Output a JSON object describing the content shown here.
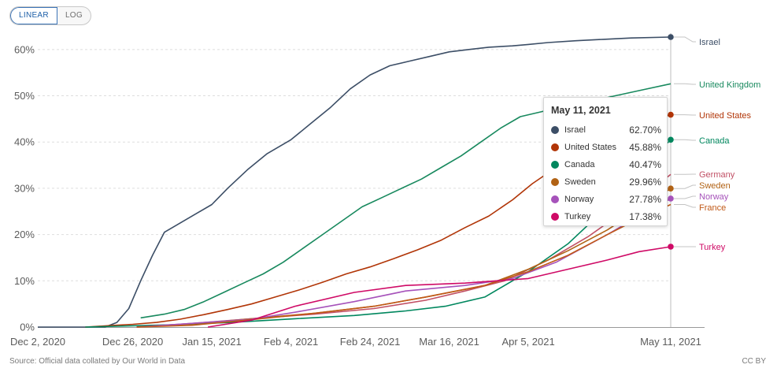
{
  "controls": {
    "linear_label": "LINEAR",
    "log_label": "LOG"
  },
  "footer": {
    "source": "Source: Official data collated by Our World in Data",
    "license": "CC BY"
  },
  "colors": {
    "Israel": "#3c4e66",
    "United Kingdom": "#18895e",
    "United States": "#b13507",
    "Canada": "#00875e",
    "Germany": "#c15065",
    "Sweden": "#b16214",
    "Norway": "#a652ba",
    "France": "#c05917",
    "Turkey": "#cf0a66",
    "grid": "#dddddd"
  },
  "tooltip": {
    "date": "May 11, 2021",
    "rows": [
      {
        "name": "Israel",
        "value": "62.70%",
        "color": "#3c4e66"
      },
      {
        "name": "United States",
        "value": "45.88%",
        "color": "#b13507"
      },
      {
        "name": "Canada",
        "value": "40.47%",
        "color": "#00875e"
      },
      {
        "name": "Sweden",
        "value": "29.96%",
        "color": "#b16214"
      },
      {
        "name": "Norway",
        "value": "27.78%",
        "color": "#a652ba"
      },
      {
        "name": "Turkey",
        "value": "17.38%",
        "color": "#cf0a66"
      }
    ]
  },
  "chart_data": {
    "type": "line",
    "title": "",
    "xlabel": "",
    "ylabel": "",
    "y_unit": "%",
    "ylim": [
      0,
      62.7
    ],
    "xlim": [
      "2020-12-02",
      "2021-05-11"
    ],
    "grid": "horizontal dashed",
    "x_tick_labels": [
      "Dec 2, 2020",
      "Dec 26, 2020",
      "Jan 15, 2021",
      "Feb 4, 2021",
      "Feb 24, 2021",
      "Mar 16, 2021",
      "Apr 5, 2021",
      "May 11, 2021"
    ],
    "x_tick_dates": [
      "2020-12-02",
      "2020-12-26",
      "2021-01-15",
      "2021-02-04",
      "2021-02-24",
      "2021-03-16",
      "2021-04-05",
      "2021-05-11"
    ],
    "y_tick_labels": [
      "0%",
      "10%",
      "20%",
      "30%",
      "40%",
      "50%",
      "60%"
    ],
    "y_ticks": [
      0,
      10,
      20,
      30,
      40,
      50,
      60
    ],
    "series": [
      {
        "name": "Israel",
        "endpoint_marker": true,
        "x": [
          "2020-12-02",
          "2020-12-19",
          "2020-12-22",
          "2020-12-25",
          "2020-12-28",
          "2020-12-31",
          "2021-01-03",
          "2021-01-07",
          "2021-01-11",
          "2021-01-15",
          "2021-01-19",
          "2021-01-24",
          "2021-01-29",
          "2021-02-04",
          "2021-02-09",
          "2021-02-14",
          "2021-02-19",
          "2021-02-24",
          "2021-03-01",
          "2021-03-06",
          "2021-03-11",
          "2021-03-16",
          "2021-03-21",
          "2021-03-26",
          "2021-04-01",
          "2021-04-05",
          "2021-04-10",
          "2021-04-17",
          "2021-04-24",
          "2021-05-01",
          "2021-05-11"
        ],
        "y": [
          0,
          0,
          1.0,
          4.0,
          10.0,
          15.5,
          20.5,
          22.5,
          24.5,
          26.5,
          30.0,
          34.0,
          37.5,
          40.5,
          44.0,
          47.5,
          51.5,
          54.5,
          56.5,
          57.5,
          58.5,
          59.5,
          60.0,
          60.5,
          60.8,
          61.1,
          61.5,
          61.9,
          62.2,
          62.5,
          62.7
        ]
      },
      {
        "name": "United Kingdom",
        "endpoint_marker": false,
        "x": [
          "2020-12-28",
          "2021-01-03",
          "2021-01-08",
          "2021-01-13",
          "2021-01-18",
          "2021-01-23",
          "2021-01-28",
          "2021-02-02",
          "2021-02-07",
          "2021-02-12",
          "2021-02-17",
          "2021-02-22",
          "2021-02-27",
          "2021-03-04",
          "2021-03-09",
          "2021-03-14",
          "2021-03-19",
          "2021-03-24",
          "2021-03-29",
          "2021-04-03",
          "2021-04-08",
          "2021-04-13",
          "2021-04-20",
          "2021-04-27",
          "2021-05-04",
          "2021-05-11"
        ],
        "y": [
          2.0,
          2.8,
          3.8,
          5.5,
          7.5,
          9.5,
          11.5,
          14.0,
          17.0,
          20.0,
          23.0,
          26.0,
          28.0,
          30.0,
          32.0,
          34.5,
          37.0,
          40.0,
          43.0,
          45.5,
          46.5,
          47.5,
          48.7,
          50.0,
          51.3,
          52.6
        ]
      },
      {
        "name": "United States",
        "endpoint_marker": true,
        "x": [
          "2020-12-14",
          "2020-12-20",
          "2020-12-26",
          "2021-01-01",
          "2021-01-07",
          "2021-01-13",
          "2021-01-19",
          "2021-01-25",
          "2021-01-31",
          "2021-02-06",
          "2021-02-12",
          "2021-02-18",
          "2021-02-24",
          "2021-03-02",
          "2021-03-08",
          "2021-03-14",
          "2021-03-20",
          "2021-03-26",
          "2021-04-01",
          "2021-04-06",
          "2021-04-12",
          "2021-04-20",
          "2021-04-27",
          "2021-05-04",
          "2021-05-11"
        ],
        "y": [
          0,
          0.3,
          0.6,
          1.0,
          1.7,
          2.7,
          3.8,
          5.0,
          6.5,
          8.0,
          9.7,
          11.5,
          13.0,
          14.8,
          16.7,
          18.8,
          21.5,
          24.0,
          27.5,
          31.0,
          34.5,
          38.5,
          41.5,
          44.0,
          45.9
        ]
      },
      {
        "name": "Canada",
        "endpoint_marker": true,
        "x": [
          "2020-12-14",
          "2021-01-05",
          "2021-01-20",
          "2021-02-05",
          "2021-02-20",
          "2021-03-05",
          "2021-03-15",
          "2021-03-25",
          "2021-04-05",
          "2021-04-15",
          "2021-04-25",
          "2021-05-03",
          "2021-05-11"
        ],
        "y": [
          0,
          0.5,
          1.0,
          1.8,
          2.5,
          3.5,
          4.5,
          6.5,
          12.0,
          18.0,
          26.0,
          34.0,
          40.5
        ]
      },
      {
        "name": "Germany",
        "endpoint_marker": false,
        "x": [
          "2020-12-27",
          "2021-01-10",
          "2021-01-25",
          "2021-02-10",
          "2021-02-25",
          "2021-03-10",
          "2021-03-20",
          "2021-03-30",
          "2021-04-10",
          "2021-04-20",
          "2021-04-30",
          "2021-05-11"
        ],
        "y": [
          0,
          0.8,
          1.8,
          2.8,
          4.0,
          5.8,
          7.8,
          10.0,
          14.5,
          19.5,
          25.5,
          33.0
        ]
      },
      {
        "name": "Sweden",
        "endpoint_marker": true,
        "x": [
          "2020-12-27",
          "2021-01-10",
          "2021-01-25",
          "2021-02-10",
          "2021-02-25",
          "2021-03-10",
          "2021-03-25",
          "2021-04-05",
          "2021-04-15",
          "2021-04-25",
          "2021-05-03",
          "2021-05-11"
        ],
        "y": [
          0,
          0.7,
          1.8,
          3.0,
          4.5,
          6.5,
          9.0,
          12.5,
          16.5,
          21.0,
          25.5,
          29.96
        ]
      },
      {
        "name": "Norway",
        "endpoint_marker": true,
        "x": [
          "2020-12-27",
          "2021-01-10",
          "2021-01-25",
          "2021-02-05",
          "2021-02-20",
          "2021-03-05",
          "2021-03-20",
          "2021-04-01",
          "2021-04-12",
          "2021-04-25",
          "2021-05-03",
          "2021-05-11"
        ],
        "y": [
          0,
          0.8,
          1.7,
          3.2,
          5.5,
          7.8,
          9.0,
          10.5,
          14.0,
          20.0,
          24.0,
          27.78
        ]
      },
      {
        "name": "France",
        "endpoint_marker": false,
        "x": [
          "2020-12-27",
          "2021-01-10",
          "2021-01-25",
          "2021-02-10",
          "2021-02-25",
          "2021-03-10",
          "2021-03-25",
          "2021-04-05",
          "2021-04-15",
          "2021-04-25",
          "2021-05-03",
          "2021-05-11"
        ],
        "y": [
          0,
          0.4,
          1.6,
          3.0,
          4.5,
          6.5,
          9.0,
          12.0,
          15.5,
          20.0,
          23.5,
          26.5
        ]
      },
      {
        "name": "Turkey",
        "endpoint_marker": true,
        "x": [
          "2021-01-14",
          "2021-01-25",
          "2021-02-05",
          "2021-02-20",
          "2021-03-05",
          "2021-03-20",
          "2021-04-05",
          "2021-04-15",
          "2021-04-25",
          "2021-05-03",
          "2021-05-11"
        ],
        "y": [
          0,
          1.5,
          4.5,
          7.5,
          9.0,
          9.5,
          10.5,
          12.5,
          14.5,
          16.3,
          17.38
        ]
      }
    ]
  }
}
